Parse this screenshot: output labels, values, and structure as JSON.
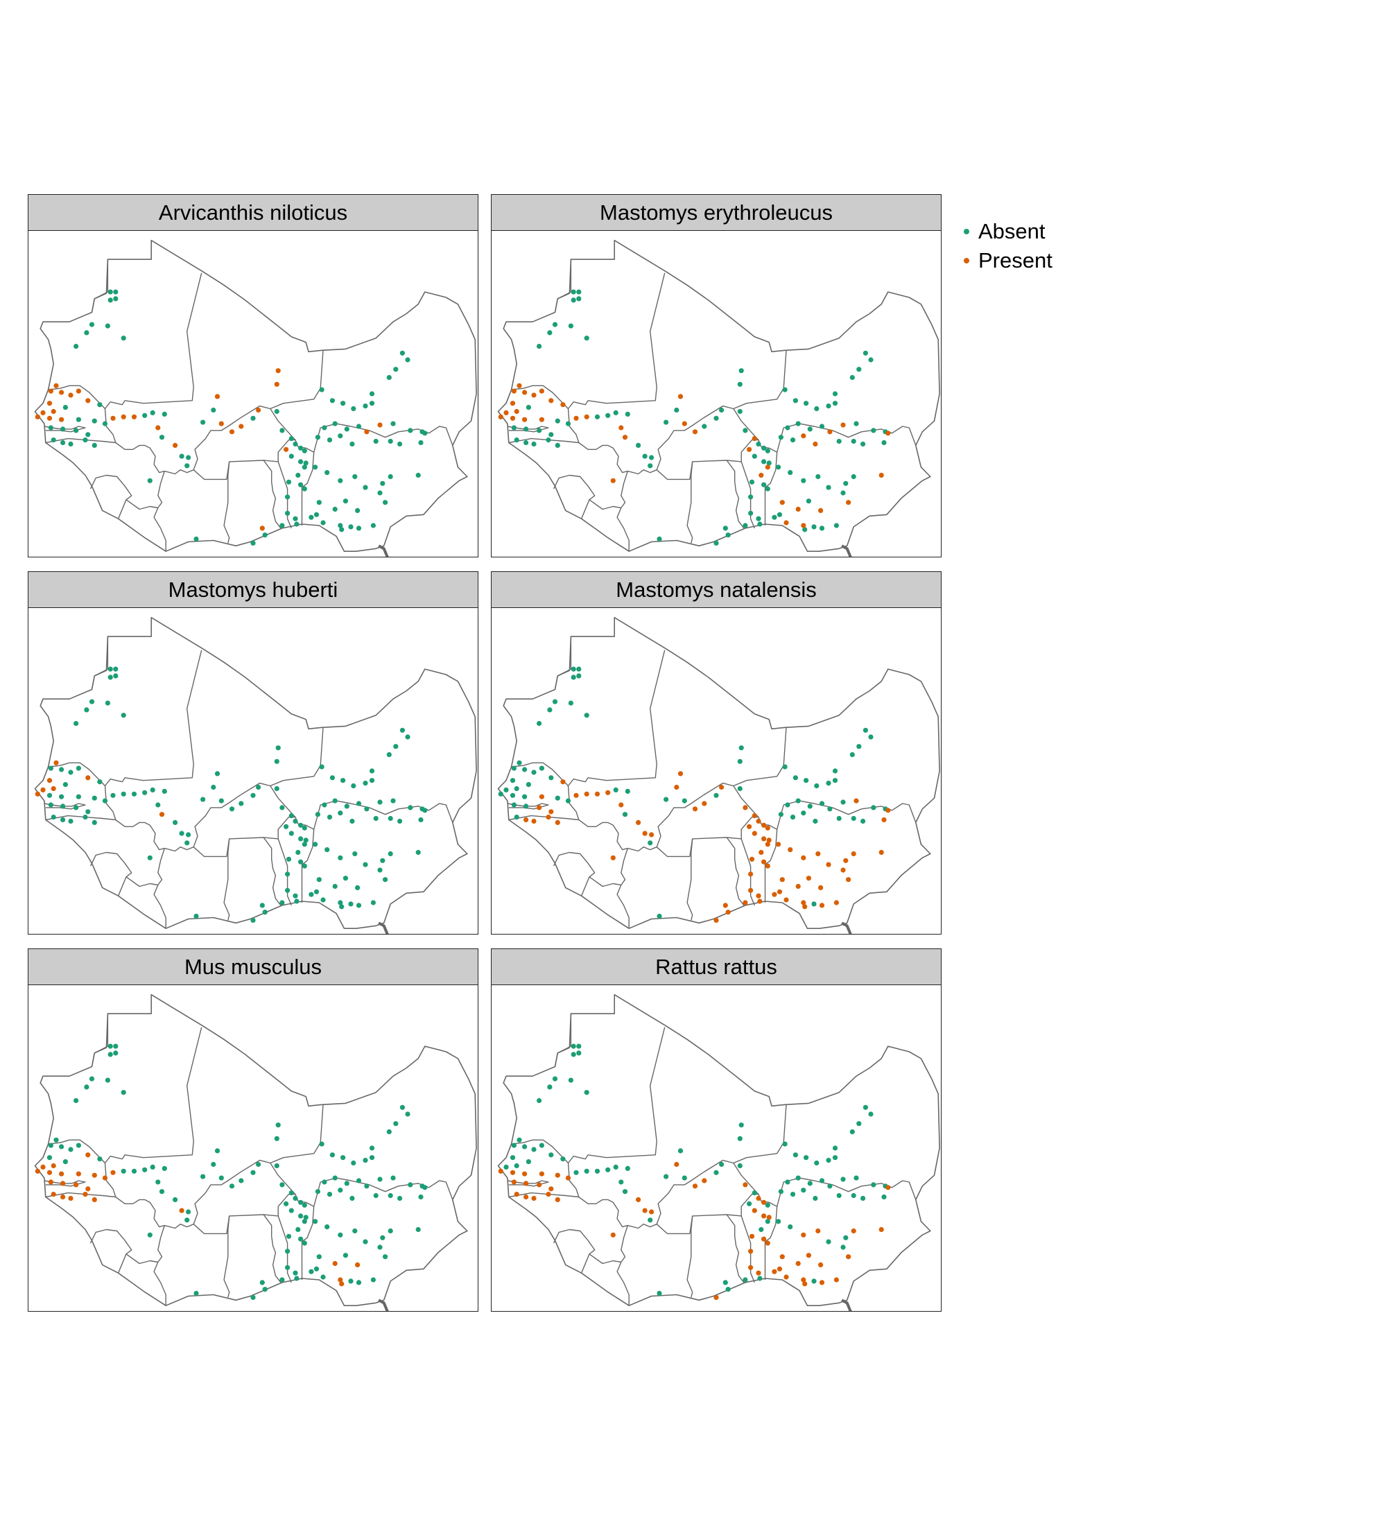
{
  "figure": {
    "panels": [
      {
        "title": "Arvicanthis niloticus",
        "presence": "arvicanthis_niloticus"
      },
      {
        "title": "Mastomys erythroleucus",
        "presence": "mastomys_erythroleucus"
      },
      {
        "title": "Mastomys huberti",
        "presence": "mastomys_huberti"
      },
      {
        "title": "Mastomys natalensis",
        "presence": "mastomys_natalensis"
      },
      {
        "title": "Mus musculus",
        "presence": "mus_musculus"
      },
      {
        "title": "Rattus rattus",
        "presence": "rattus_rattus"
      }
    ],
    "legend": [
      {
        "label": "Absent",
        "color": "#1b9e77"
      },
      {
        "label": "Present",
        "color": "#d95f02"
      }
    ]
  },
  "chart_data": {
    "type": "scatter",
    "map_region": "West Africa",
    "lon_range": [
      -18,
      16
    ],
    "lat_range": [
      4,
      28
    ],
    "sampling_sites": [
      [
        -11.8,
        23.5
      ],
      [
        -11.4,
        23.5
      ],
      [
        -11.4,
        23.0
      ],
      [
        -11.8,
        22.9
      ],
      [
        -12.0,
        21.0
      ],
      [
        -13.2,
        21.1
      ],
      [
        -13.6,
        20.5
      ],
      [
        -10.8,
        20.1
      ],
      [
        -14.4,
        19.5
      ],
      [
        -15.9,
        16.6
      ],
      [
        -16.3,
        16.2
      ],
      [
        -15.5,
        16.1
      ],
      [
        -14.8,
        15.9
      ],
      [
        -14.2,
        16.2
      ],
      [
        -16.4,
        15.3
      ],
      [
        -15.2,
        15.0
      ],
      [
        -13.5,
        15.5
      ],
      [
        -12.6,
        15.2
      ],
      [
        -16.9,
        14.6
      ],
      [
        -16.1,
        14.7
      ],
      [
        -17.3,
        14.3
      ],
      [
        -16.4,
        14.2
      ],
      [
        -15.5,
        14.1
      ],
      [
        -14.2,
        14.1
      ],
      [
        -13.0,
        14.0
      ],
      [
        -12.2,
        13.8
      ],
      [
        -16.3,
        13.5
      ],
      [
        -15.4,
        13.4
      ],
      [
        -14.4,
        13.3
      ],
      [
        -13.5,
        13.0
      ],
      [
        -16.1,
        12.6
      ],
      [
        -15.4,
        12.4
      ],
      [
        -14.8,
        12.3
      ],
      [
        -13.7,
        12.6
      ],
      [
        -13.0,
        12.2
      ],
      [
        -11.6,
        14.2
      ],
      [
        -10.8,
        14.3
      ],
      [
        -10.0,
        14.3
      ],
      [
        -9.2,
        14.4
      ],
      [
        -8.6,
        14.6
      ],
      [
        -7.7,
        14.5
      ],
      [
        -8.2,
        13.5
      ],
      [
        -7.9,
        12.8
      ],
      [
        -6.9,
        12.2
      ],
      [
        -6.4,
        11.4
      ],
      [
        -5.9,
        11.3
      ],
      [
        -6.0,
        10.7
      ],
      [
        -8.8,
        9.6
      ],
      [
        -4.0,
        14.8
      ],
      [
        -4.8,
        13.9
      ],
      [
        -3.4,
        13.8
      ],
      [
        -2.6,
        13.2
      ],
      [
        -1.9,
        13.6
      ],
      [
        -1.0,
        14.2
      ],
      [
        -0.6,
        14.8
      ],
      [
        0.8,
        14.7
      ],
      [
        0.8,
        16.7
      ],
      [
        0.9,
        17.7
      ],
      [
        -3.7,
        15.8
      ],
      [
        1.2,
        13.3
      ],
      [
        1.9,
        12.7
      ],
      [
        2.2,
        12.3
      ],
      [
        1.5,
        11.9
      ],
      [
        2.6,
        12.0
      ],
      [
        2.9,
        11.8
      ],
      [
        1.9,
        11.4
      ],
      [
        2.6,
        11.0
      ],
      [
        3.0,
        10.9
      ],
      [
        2.9,
        10.6
      ],
      [
        2.4,
        10.0
      ],
      [
        2.6,
        9.3
      ],
      [
        2.9,
        9.0
      ],
      [
        1.7,
        9.5
      ],
      [
        1.6,
        8.4
      ],
      [
        1.6,
        7.2
      ],
      [
        2.2,
        6.8
      ],
      [
        2.3,
        6.4
      ],
      [
        1.2,
        6.3
      ],
      [
        -0.3,
        6.1
      ],
      [
        -0.1,
        5.6
      ],
      [
        -1.0,
        5.0
      ],
      [
        -5.3,
        5.3
      ],
      [
        4.2,
        16.3
      ],
      [
        5.0,
        15.5
      ],
      [
        5.8,
        15.3
      ],
      [
        6.6,
        14.9
      ],
      [
        7.5,
        15.1
      ],
      [
        8.0,
        15.3
      ],
      [
        8.0,
        16.0
      ],
      [
        9.3,
        17.2
      ],
      [
        9.8,
        17.8
      ],
      [
        10.3,
        19.0
      ],
      [
        10.7,
        18.5
      ],
      [
        4.4,
        13.5
      ],
      [
        5.2,
        13.8
      ],
      [
        6.1,
        13.4
      ],
      [
        7.0,
        13.6
      ],
      [
        7.6,
        13.2
      ],
      [
        8.6,
        13.7
      ],
      [
        9.6,
        13.8
      ],
      [
        10.9,
        13.3
      ],
      [
        11.8,
        13.2
      ],
      [
        3.9,
        12.8
      ],
      [
        4.8,
        12.6
      ],
      [
        5.6,
        12.9
      ],
      [
        6.5,
        12.3
      ],
      [
        8.3,
        12.5
      ],
      [
        9.4,
        12.5
      ],
      [
        10.1,
        12.3
      ],
      [
        11.7,
        12.4
      ],
      [
        12.0,
        13.1
      ],
      [
        11.5,
        10.0
      ],
      [
        9.4,
        9.9
      ],
      [
        8.8,
        9.4
      ],
      [
        8.6,
        8.7
      ],
      [
        9.0,
        8.0
      ],
      [
        7.5,
        9.1
      ],
      [
        6.7,
        9.9
      ],
      [
        5.6,
        9.6
      ],
      [
        4.6,
        10.2
      ],
      [
        3.7,
        10.6
      ],
      [
        4.0,
        8.0
      ],
      [
        5.2,
        7.5
      ],
      [
        6.0,
        8.1
      ],
      [
        6.9,
        7.4
      ],
      [
        5.6,
        6.3
      ],
      [
        5.7,
        6.0
      ],
      [
        8.1,
        6.3
      ],
      [
        7.0,
        6.1
      ],
      [
        3.8,
        7.1
      ],
      [
        3.4,
        6.9
      ],
      [
        4.3,
        6.5
      ],
      [
        6.4,
        6.2
      ]
    ],
    "presence": {
      "arvicanthis_niloticus": [
        0,
        0,
        0,
        0,
        0,
        0,
        0,
        0,
        0,
        1,
        1,
        1,
        1,
        1,
        1,
        0,
        1,
        0,
        1,
        1,
        1,
        1,
        1,
        0,
        0,
        0,
        0,
        0,
        0,
        0,
        0,
        0,
        0,
        0,
        0,
        1,
        1,
        1,
        0,
        0,
        0,
        1,
        0,
        1,
        0,
        0,
        0,
        0,
        0,
        0,
        1,
        1,
        1,
        0,
        1,
        0,
        1,
        1,
        1,
        0,
        0,
        0,
        1,
        0,
        0,
        0,
        0,
        0,
        0,
        0,
        0,
        0,
        0,
        0,
        0,
        0,
        0,
        0,
        1,
        0,
        0,
        0,
        0,
        0,
        0,
        0,
        0,
        0,
        0,
        0,
        0,
        0,
        0,
        0,
        0,
        0,
        0,
        1,
        1,
        0,
        0,
        0,
        0,
        0,
        0,
        0,
        0,
        0,
        0,
        0,
        0,
        0,
        0,
        0,
        0,
        0,
        0,
        0,
        0,
        0,
        0,
        0,
        0,
        0,
        0,
        0,
        0,
        0,
        0,
        0,
        0,
        0
      ],
      "mastomys_erythroleucus": [
        0,
        0,
        0,
        0,
        0,
        0,
        0,
        0,
        0,
        1,
        1,
        1,
        1,
        1,
        1,
        0,
        1,
        1,
        1,
        1,
        1,
        1,
        1,
        1,
        0,
        0,
        0,
        0,
        0,
        0,
        0,
        0,
        0,
        0,
        0,
        1,
        1,
        0,
        0,
        0,
        0,
        1,
        1,
        0,
        0,
        0,
        0,
        1,
        0,
        0,
        1,
        1,
        0,
        0,
        0,
        0,
        0,
        0,
        1,
        0,
        1,
        0,
        1,
        0,
        0,
        0,
        0,
        0,
        1,
        1,
        0,
        0,
        0,
        0,
        0,
        0,
        0,
        0,
        0,
        0,
        0,
        0,
        0,
        0,
        0,
        0,
        0,
        0,
        0,
        0,
        0,
        0,
        0,
        0,
        0,
        0,
        0,
        1,
        1,
        0,
        0,
        0,
        0,
        0,
        1,
        1,
        0,
        0,
        0,
        0,
        1,
        1,
        0,
        0,
        0,
        1,
        0,
        0,
        0,
        0,
        0,
        1,
        1,
        0,
        1,
        1,
        0,
        0,
        0,
        0,
        0,
        1
      ],
      "mastomys_huberti": [
        0,
        0,
        0,
        0,
        0,
        0,
        0,
        0,
        0,
        1,
        0,
        0,
        0,
        0,
        1,
        0,
        1,
        0,
        1,
        1,
        1,
        0,
        0,
        0,
        0,
        0,
        0,
        0,
        0,
        0,
        0,
        0,
        0,
        0,
        0,
        0,
        0,
        0,
        0,
        0,
        0,
        0,
        1,
        0,
        0,
        0,
        0,
        0,
        0,
        0,
        0,
        0,
        0,
        0,
        0,
        0,
        0,
        0,
        0,
        0,
        0,
        0,
        0,
        0,
        0,
        0,
        0,
        0,
        0,
        0,
        0,
        0,
        0,
        0,
        0,
        0,
        0,
        0,
        0,
        0,
        0,
        0,
        0,
        0,
        0,
        0,
        0,
        0,
        0,
        0,
        0,
        0,
        0,
        0,
        0,
        0,
        0,
        0,
        0,
        0,
        0,
        0,
        0,
        0,
        0,
        0,
        0,
        0,
        0,
        0,
        0,
        0,
        0,
        0,
        0,
        0,
        0,
        0,
        0,
        0,
        0,
        0,
        0,
        0,
        0,
        0,
        0,
        0,
        0,
        0,
        0,
        0
      ],
      "mastomys_natalensis": [
        0,
        0,
        0,
        0,
        0,
        0,
        0,
        0,
        0,
        0,
        0,
        0,
        0,
        0,
        0,
        0,
        0,
        1,
        0,
        0,
        0,
        0,
        0,
        1,
        0,
        0,
        0,
        0,
        1,
        1,
        0,
        1,
        1,
        1,
        1,
        1,
        1,
        1,
        1,
        0,
        0,
        1,
        0,
        1,
        1,
        1,
        0,
        1,
        1,
        0,
        0,
        1,
        1,
        0,
        1,
        0,
        0,
        0,
        1,
        1,
        1,
        1,
        1,
        1,
        1,
        1,
        1,
        1,
        1,
        1,
        1,
        1,
        1,
        1,
        1,
        1,
        1,
        1,
        1,
        1,
        1,
        0,
        0,
        0,
        0,
        0,
        0,
        0,
        0,
        0,
        0,
        0,
        0,
        0,
        0,
        0,
        0,
        0,
        0,
        1,
        0,
        0,
        0,
        0,
        0,
        0,
        0,
        0,
        0,
        1,
        1,
        1,
        1,
        1,
        1,
        1,
        1,
        1,
        1,
        1,
        1,
        1,
        1,
        1,
        1,
        1,
        1,
        1,
        1,
        1,
        1,
        1
      ],
      "mus_musculus": [
        0,
        0,
        0,
        0,
        0,
        0,
        0,
        0,
        0,
        0,
        0,
        0,
        0,
        0,
        0,
        0,
        1,
        0,
        1,
        1,
        1,
        1,
        1,
        1,
        1,
        1,
        1,
        1,
        1,
        1,
        1,
        1,
        1,
        1,
        1,
        1,
        0,
        0,
        0,
        0,
        0,
        0,
        0,
        0,
        1,
        0,
        0,
        0,
        0,
        0,
        0,
        0,
        0,
        0,
        0,
        0,
        0,
        0,
        0,
        0,
        0,
        0,
        0,
        0,
        0,
        0,
        0,
        0,
        0,
        0,
        0,
        0,
        0,
        0,
        0,
        0,
        0,
        0,
        0,
        0,
        0,
        0,
        0,
        0,
        0,
        0,
        0,
        0,
        0,
        0,
        0,
        0,
        0,
        0,
        0,
        0,
        0,
        0,
        0,
        0,
        0,
        0,
        0,
        0,
        0,
        0,
        0,
        0,
        0,
        0,
        0,
        0,
        0,
        0,
        0,
        0,
        0,
        0,
        0,
        0,
        0,
        0,
        1,
        0,
        1,
        1,
        1,
        0,
        0,
        0,
        0,
        0
      ],
      "rattus_rattus": [
        0,
        0,
        0,
        0,
        0,
        0,
        0,
        0,
        0,
        0,
        0,
        0,
        0,
        0,
        0,
        0,
        0,
        0,
        0,
        0,
        1,
        1,
        1,
        1,
        1,
        1,
        1,
        1,
        1,
        1,
        1,
        1,
        1,
        1,
        1,
        0,
        0,
        0,
        0,
        0,
        0,
        0,
        0,
        1,
        1,
        1,
        0,
        1,
        1,
        0,
        0,
        1,
        1,
        0,
        0,
        0,
        0,
        0,
        0,
        1,
        0,
        1,
        0,
        1,
        0,
        1,
        1,
        1,
        0,
        0,
        1,
        1,
        1,
        1,
        1,
        1,
        0,
        0,
        0,
        0,
        1,
        0,
        0,
        0,
        0,
        0,
        0,
        0,
        0,
        0,
        0,
        0,
        0,
        0,
        0,
        0,
        0,
        0,
        0,
        0,
        0,
        0,
        0,
        0,
        0,
        0,
        0,
        0,
        0,
        0,
        1,
        1,
        1,
        0,
        0,
        1,
        0,
        1,
        1,
        0,
        0,
        1,
        1,
        1,
        1,
        1,
        1,
        1,
        1,
        1,
        1,
        1
      ]
    },
    "legend_position": "right",
    "grid": false
  }
}
